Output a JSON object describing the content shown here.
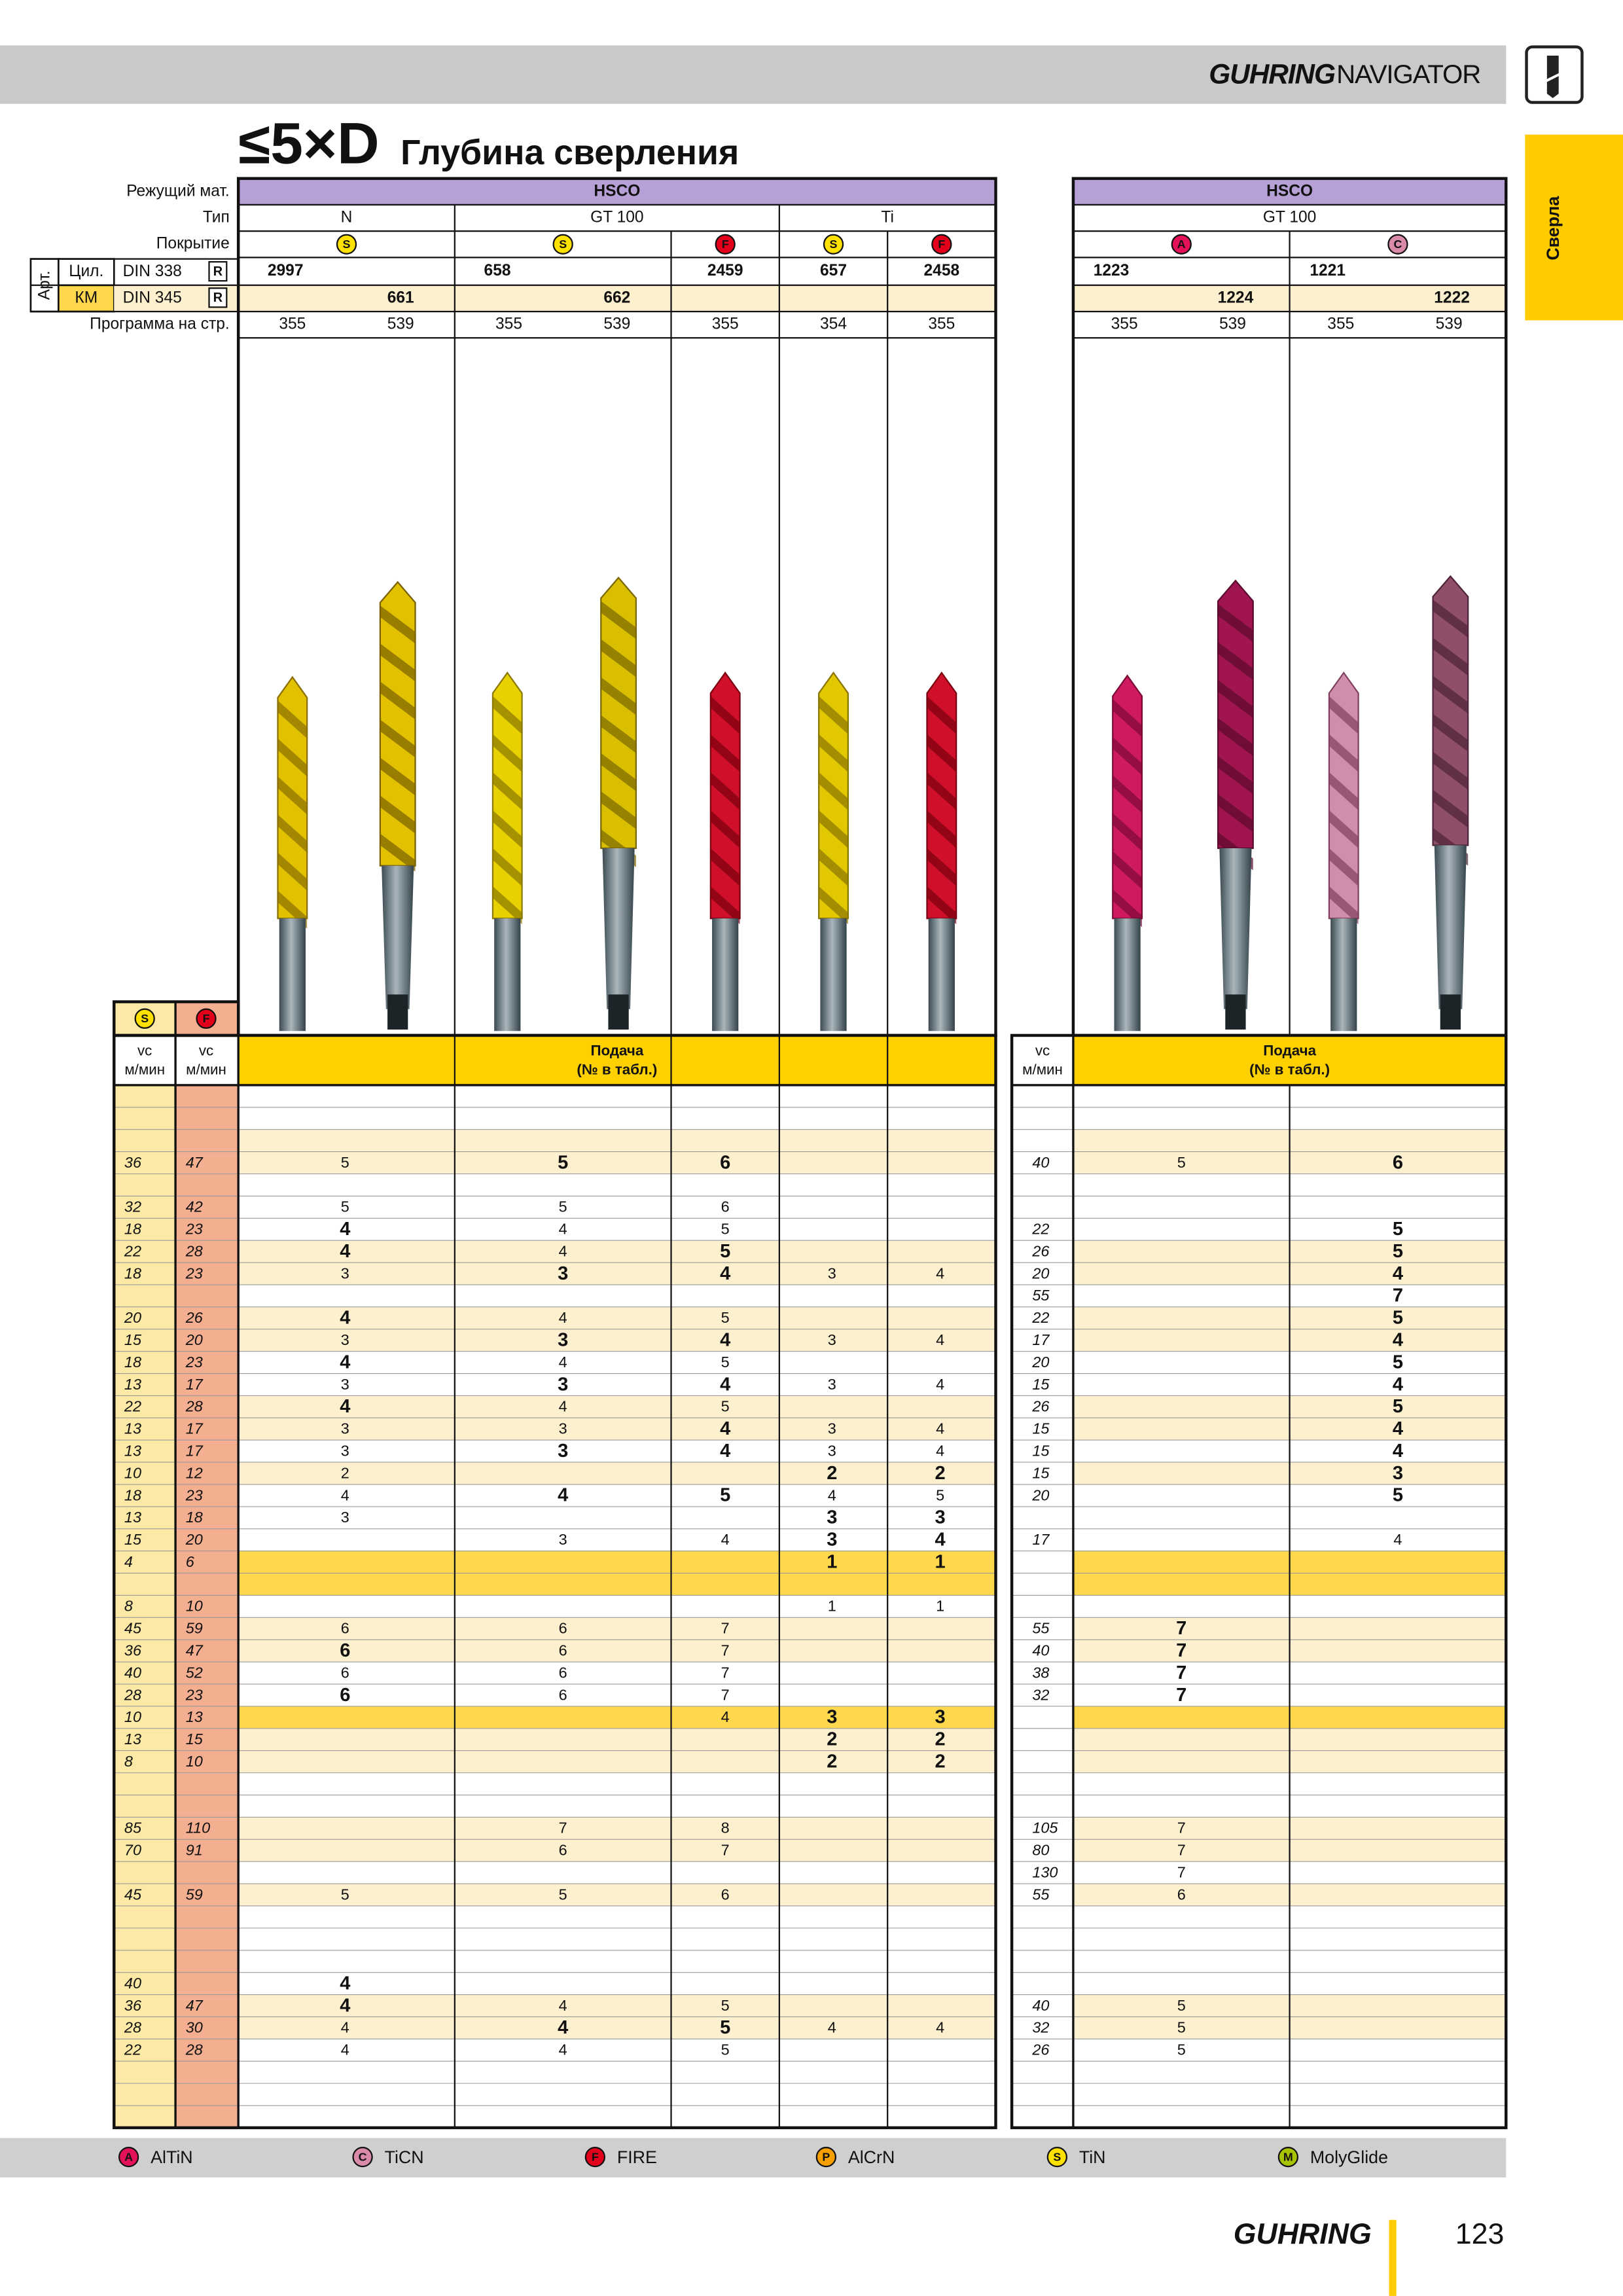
{
  "header": {
    "brand": "GUHRING",
    "brand_suffix": "NAVIGATOR"
  },
  "side_tab": "Сверла",
  "title": {
    "prefix": "≤5×D",
    "text": "Глубина сверления"
  },
  "labels": {
    "material": "Режущий мат.",
    "type": "Тип",
    "coating": "Покрытие",
    "art": "Арт.",
    "cyl": "Цил.",
    "km": "КМ",
    "din338": "DIN 338",
    "din345": "DIN 345",
    "r": "R",
    "program": "Программа на стр."
  },
  "coating_colors": {
    "A": "#e3105a",
    "C": "#d98aa8",
    "F": "#e2001a",
    "P": "#f5a000",
    "S": "#ffe100",
    "M": "#a8c400"
  },
  "left": {
    "material": "HSCO",
    "types": [
      "N",
      "GT 100",
      "Ti"
    ],
    "coatings": [
      "S",
      "S",
      "F",
      "S",
      "F"
    ],
    "cyl": [
      "2997",
      "658",
      "2459",
      "657",
      "2458"
    ],
    "km": [
      "661",
      "662",
      null,
      null,
      null
    ],
    "program": [
      "355",
      "539",
      "355",
      "539",
      "355",
      "354",
      "355"
    ]
  },
  "right": {
    "material": "HSCO",
    "type": "GT 100",
    "coatings": [
      "A",
      "C"
    ],
    "cyl": [
      "1223",
      "1221"
    ],
    "km": [
      "1224",
      "1222"
    ],
    "program": [
      "355",
      "539",
      "355",
      "539"
    ]
  },
  "feed_table": {
    "vc_coatings": [
      "S",
      "F"
    ],
    "vc": "vc",
    "unit": "м/мин",
    "feed": "Подача",
    "feed_note": "(№ в табл.)",
    "bands": {
      "light": [
        2,
        3,
        7,
        8,
        10,
        11,
        14,
        15,
        17,
        24,
        25,
        29,
        30,
        33,
        34,
        36,
        41,
        42
      ],
      "strong": [
        21,
        22,
        28
      ]
    },
    "rows": [
      {
        "cells": [
          null,
          null,
          null,
          null,
          null,
          null,
          null,
          null,
          null,
          null
        ]
      },
      {
        "cells": [
          null,
          null,
          null,
          null,
          null,
          null,
          null,
          null,
          null,
          null
        ]
      },
      {
        "cells": [
          null,
          null,
          null,
          null,
          null,
          null,
          null,
          null,
          null,
          null
        ]
      },
      {
        "cells": [
          "36",
          "47",
          "5",
          "5",
          "6",
          null,
          null,
          "40",
          "5",
          "6"
        ],
        "bold": [
          3,
          4,
          9
        ]
      },
      {
        "cells": [
          null,
          null,
          null,
          null,
          null,
          null,
          null,
          null,
          null,
          null
        ]
      },
      {
        "cells": [
          "32",
          "42",
          "5",
          "5",
          "6",
          null,
          null,
          null,
          null,
          null
        ]
      },
      {
        "cells": [
          "18",
          "23",
          "4",
          "4",
          "5",
          null,
          null,
          "22",
          null,
          "5"
        ],
        "bold": [
          2,
          9
        ]
      },
      {
        "cells": [
          "22",
          "28",
          "4",
          "4",
          "5",
          null,
          null,
          "26",
          null,
          "5"
        ],
        "bold": [
          2,
          4,
          9
        ]
      },
      {
        "cells": [
          "18",
          "23",
          "3",
          "3",
          "4",
          "3",
          "4",
          "20",
          null,
          "4"
        ],
        "bold": [
          3,
          4,
          9
        ]
      },
      {
        "cells": [
          null,
          null,
          null,
          null,
          null,
          null,
          null,
          "55",
          null,
          "7"
        ],
        "bold": [
          9
        ]
      },
      {
        "cells": [
          "20",
          "26",
          "4",
          "4",
          "5",
          null,
          null,
          "22",
          null,
          "5"
        ],
        "bold": [
          2,
          9
        ]
      },
      {
        "cells": [
          "15",
          "20",
          "3",
          "3",
          "4",
          "3",
          "4",
          "17",
          null,
          "4"
        ],
        "bold": [
          3,
          4,
          9
        ]
      },
      {
        "cells": [
          "18",
          "23",
          "4",
          "4",
          "5",
          null,
          null,
          "20",
          null,
          "5"
        ],
        "bold": [
          2,
          9
        ]
      },
      {
        "cells": [
          "13",
          "17",
          "3",
          "3",
          "4",
          "3",
          "4",
          "15",
          null,
          "4"
        ],
        "bold": [
          3,
          4,
          9
        ]
      },
      {
        "cells": [
          "22",
          "28",
          "4",
          "4",
          "5",
          null,
          null,
          "26",
          null,
          "5"
        ],
        "bold": [
          2,
          9
        ]
      },
      {
        "cells": [
          "13",
          "17",
          "3",
          "3",
          "4",
          "3",
          "4",
          "15",
          null,
          "4"
        ],
        "bold": [
          4,
          9
        ]
      },
      {
        "cells": [
          "13",
          "17",
          "3",
          "3",
          "4",
          "3",
          "4",
          "15",
          null,
          "4"
        ],
        "bold": [
          3,
          4,
          9
        ]
      },
      {
        "cells": [
          "10",
          "12",
          "2",
          null,
          null,
          "2",
          "2",
          "15",
          null,
          "3"
        ],
        "bold": [
          5,
          6,
          9
        ]
      },
      {
        "cells": [
          "18",
          "23",
          "4",
          "4",
          "5",
          "4",
          "5",
          "20",
          null,
          "5"
        ],
        "bold": [
          3,
          4,
          9
        ]
      },
      {
        "cells": [
          "13",
          "18",
          "3",
          null,
          null,
          "3",
          "3",
          null,
          null,
          null
        ],
        "bold": [
          5,
          6
        ]
      },
      {
        "cells": [
          "15",
          "20",
          null,
          "3",
          "4",
          "3",
          "4",
          "17",
          null,
          "4"
        ],
        "bold": [
          5,
          6
        ]
      },
      {
        "cells": [
          "4",
          "6",
          null,
          null,
          null,
          "1",
          "1",
          null,
          null,
          null
        ],
        "bold": [
          5,
          6
        ]
      },
      {
        "cells": [
          null,
          null,
          null,
          null,
          null,
          null,
          null,
          null,
          null,
          null
        ]
      },
      {
        "cells": [
          "8",
          "10",
          null,
          null,
          null,
          "1",
          "1",
          null,
          null,
          null
        ]
      },
      {
        "cells": [
          "45",
          "59",
          "6",
          "6",
          "7",
          null,
          null,
          "55",
          "7",
          null
        ],
        "bold": [
          8
        ]
      },
      {
        "cells": [
          "36",
          "47",
          "6",
          "6",
          "7",
          null,
          null,
          "40",
          "7",
          null
        ],
        "bold": [
          2,
          8
        ]
      },
      {
        "cells": [
          "40",
          "52",
          "6",
          "6",
          "7",
          null,
          null,
          "38",
          "7",
          null
        ],
        "bold": [
          8
        ]
      },
      {
        "cells": [
          "28",
          "23",
          "6",
          "6",
          "7",
          null,
          null,
          "32",
          "7",
          null
        ],
        "bold": [
          2,
          8
        ]
      },
      {
        "cells": [
          "10",
          "13",
          null,
          null,
          "4",
          "3",
          "3",
          null,
          null,
          null
        ],
        "bold": [
          5,
          6
        ]
      },
      {
        "cells": [
          "13",
          "15",
          null,
          null,
          null,
          "2",
          "2",
          null,
          null,
          null
        ],
        "bold": [
          5,
          6
        ]
      },
      {
        "cells": [
          "8",
          "10",
          null,
          null,
          null,
          "2",
          "2",
          null,
          null,
          null
        ],
        "bold": [
          5,
          6
        ]
      },
      {
        "cells": [
          null,
          null,
          null,
          null,
          null,
          null,
          null,
          null,
          null,
          null
        ]
      },
      {
        "cells": [
          null,
          null,
          null,
          null,
          null,
          null,
          null,
          null,
          null,
          null
        ]
      },
      {
        "cells": [
          "85",
          "110",
          null,
          "7",
          "8",
          null,
          null,
          "105",
          "7",
          null
        ]
      },
      {
        "cells": [
          "70",
          "91",
          null,
          "6",
          "7",
          null,
          null,
          "80",
          "7",
          null
        ]
      },
      {
        "cells": [
          null,
          null,
          null,
          null,
          null,
          null,
          null,
          "130",
          "7",
          null
        ]
      },
      {
        "cells": [
          "45",
          "59",
          "5",
          "5",
          "6",
          null,
          null,
          "55",
          "6",
          null
        ]
      },
      {
        "cells": [
          null,
          null,
          null,
          null,
          null,
          null,
          null,
          null,
          null,
          null
        ]
      },
      {
        "cells": [
          null,
          null,
          null,
          null,
          null,
          null,
          null,
          null,
          null,
          null
        ]
      },
      {
        "cells": [
          null,
          null,
          null,
          null,
          null,
          null,
          null,
          null,
          null,
          null
        ]
      },
      {
        "cells": [
          "40",
          null,
          "4",
          null,
          null,
          null,
          null,
          null,
          null,
          null
        ],
        "bold": [
          2
        ]
      },
      {
        "cells": [
          "36",
          "47",
          "4",
          "4",
          "5",
          null,
          null,
          "40",
          "5",
          null
        ],
        "bold": [
          2
        ]
      },
      {
        "cells": [
          "28",
          "30",
          "4",
          "4",
          "5",
          "4",
          "4",
          "32",
          "5",
          null
        ],
        "bold": [
          3,
          4
        ]
      },
      {
        "cells": [
          "22",
          "28",
          "4",
          "4",
          "5",
          null,
          null,
          "26",
          "5",
          null
        ]
      },
      {
        "cells": [
          null,
          null,
          null,
          null,
          null,
          null,
          null,
          null,
          null,
          null
        ]
      },
      {
        "cells": [
          null,
          null,
          null,
          null,
          null,
          null,
          null,
          null,
          null,
          null
        ]
      },
      {
        "cells": [
          null,
          null,
          null,
          null,
          null,
          null,
          null,
          null,
          null,
          null
        ]
      }
    ]
  },
  "legend": [
    {
      "code": "A",
      "name": "AlTiN"
    },
    {
      "code": "C",
      "name": "TiCN"
    },
    {
      "code": "F",
      "name": "FIRE"
    },
    {
      "code": "P",
      "name": "AlCrN"
    },
    {
      "code": "S",
      "name": "TiN"
    },
    {
      "code": "M",
      "name": "MolyGlide"
    }
  ],
  "footer": {
    "brand": "GUHRING",
    "page": "123"
  }
}
